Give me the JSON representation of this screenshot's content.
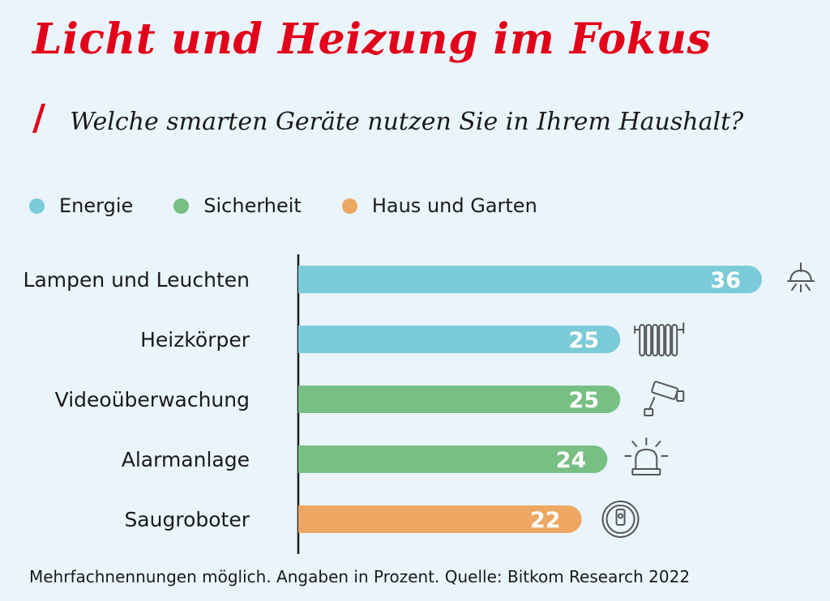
{
  "header": {
    "title": "Licht und Heizung im Fokus",
    "slash": "/",
    "subtitle": "Welche smarten Geräte nutzen Sie in Ihrem Haushalt?"
  },
  "legend": [
    {
      "label": "Energie",
      "color": "#7ccbd9"
    },
    {
      "label": "Sicherheit",
      "color": "#77bf83"
    },
    {
      "label": "Haus und Garten",
      "color": "#eda762"
    }
  ],
  "chart_data": {
    "type": "bar",
    "orientation": "horizontal",
    "categories": [
      "Lampen und Leuchten",
      "Heizkörper",
      "Videoüberwachung",
      "Alarmanlage",
      "Saugroboter"
    ],
    "values": [
      36,
      25,
      25,
      24,
      22
    ],
    "groups": [
      "Energie",
      "Energie",
      "Sicherheit",
      "Sicherheit",
      "Haus und Garten"
    ],
    "icons": [
      "ceiling-lamp-icon",
      "radiator-icon",
      "security-camera-icon",
      "alarm-siren-icon",
      "robot-vacuum-icon"
    ],
    "xlim": [
      0,
      36
    ],
    "unit": "%",
    "grid": false,
    "legend_position": "top-left"
  },
  "footnote": "Mehrfachnennungen möglich. Angaben in Prozent. Quelle: Bitkom Research 2022"
}
